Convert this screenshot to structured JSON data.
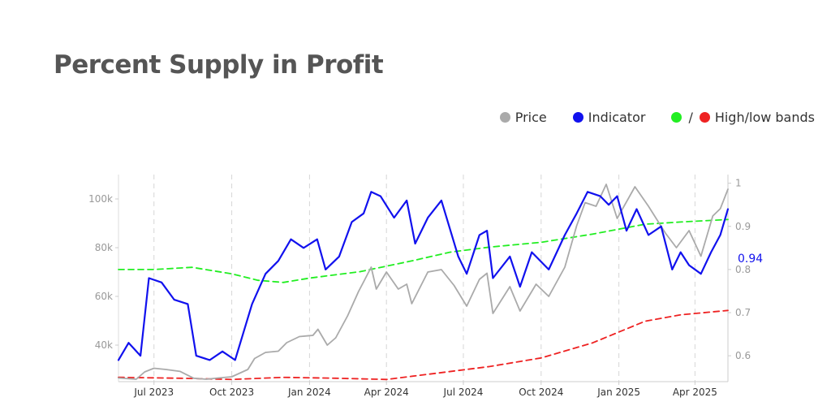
{
  "page": {
    "title": "Percent Supply in Profit"
  },
  "legend": [
    {
      "label": "Price",
      "colors": [
        "#aaaaaa"
      ]
    },
    {
      "label": "Indicator",
      "colors": [
        "#1111ee"
      ]
    },
    {
      "label": "High/low bands",
      "colors": [
        "#22ee22",
        "#ee2222"
      ],
      "separator": "/"
    }
  ],
  "chart_data": {
    "type": "line",
    "title": "Percent Supply in Profit",
    "x_range": [
      "2023-05-20",
      "2025-05-10"
    ],
    "x_ticks": [
      {
        "date": "2023-07-01",
        "label": "Jul 2023"
      },
      {
        "date": "2023-10-01",
        "label": "Oct 2023"
      },
      {
        "date": "2024-01-01",
        "label": "Jan 2024"
      },
      {
        "date": "2024-04-01",
        "label": "Apr 2024"
      },
      {
        "date": "2024-07-01",
        "label": "Jul 2024"
      },
      {
        "date": "2024-10-01",
        "label": "Oct 2024"
      },
      {
        "date": "2025-01-01",
        "label": "Jan 2025"
      },
      {
        "date": "2025-04-01",
        "label": "Apr 2025"
      }
    ],
    "y_left": {
      "range": [
        25000,
        110000
      ],
      "ticks": [
        40000,
        60000,
        80000,
        100000
      ],
      "tick_labels": [
        "40k",
        "60k",
        "80k",
        "100k"
      ]
    },
    "y_right": {
      "range": [
        0.54,
        1.02
      ],
      "ticks": [
        0.6,
        0.7,
        0.8,
        0.9,
        1.0
      ],
      "tick_labels": [
        "0.6",
        "0.7",
        "0.8",
        "0.9",
        "1"
      ]
    },
    "grid": {
      "vertical_dashed": true,
      "horizontal": false
    },
    "last_value_label": "0.94",
    "series": [
      {
        "name": "Price",
        "axis": "left",
        "color": "#aaaaaa",
        "style": "solid",
        "points": [
          [
            "2023-05-20",
            26500
          ],
          [
            "2023-06-10",
            26000
          ],
          [
            "2023-06-20",
            29000
          ],
          [
            "2023-07-01",
            30500
          ],
          [
            "2023-07-15",
            30000
          ],
          [
            "2023-08-01",
            29200
          ],
          [
            "2023-08-17",
            26400
          ],
          [
            "2023-09-01",
            26000
          ],
          [
            "2023-09-15",
            26500
          ],
          [
            "2023-10-01",
            27000
          ],
          [
            "2023-10-20",
            30000
          ],
          [
            "2023-10-28",
            34500
          ],
          [
            "2023-11-10",
            37000
          ],
          [
            "2023-11-25",
            37500
          ],
          [
            "2023-12-05",
            41000
          ],
          [
            "2023-12-20",
            43500
          ],
          [
            "2024-01-05",
            44000
          ],
          [
            "2024-01-11",
            46500
          ],
          [
            "2024-01-22",
            40000
          ],
          [
            "2024-02-01",
            43000
          ],
          [
            "2024-02-15",
            52000
          ],
          [
            "2024-02-28",
            62000
          ],
          [
            "2024-03-05",
            66000
          ],
          [
            "2024-03-14",
            72000
          ],
          [
            "2024-03-20",
            63000
          ],
          [
            "2024-04-01",
            70000
          ],
          [
            "2024-04-15",
            63000
          ],
          [
            "2024-04-25",
            65000
          ],
          [
            "2024-05-01",
            57000
          ],
          [
            "2024-05-20",
            70000
          ],
          [
            "2024-06-05",
            71000
          ],
          [
            "2024-06-20",
            64500
          ],
          [
            "2024-07-05",
            56000
          ],
          [
            "2024-07-20",
            67000
          ],
          [
            "2024-07-29",
            69500
          ],
          [
            "2024-08-05",
            53000
          ],
          [
            "2024-08-25",
            64000
          ],
          [
            "2024-09-06",
            54000
          ],
          [
            "2024-09-25",
            65000
          ],
          [
            "2024-10-10",
            60000
          ],
          [
            "2024-10-29",
            72000
          ],
          [
            "2024-11-12",
            89000
          ],
          [
            "2024-11-22",
            98500
          ],
          [
            "2024-12-05",
            97000
          ],
          [
            "2024-12-17",
            106000
          ],
          [
            "2024-12-30",
            92000
          ],
          [
            "2025-01-20",
            105000
          ],
          [
            "2025-02-05",
            97000
          ],
          [
            "2025-02-25",
            86000
          ],
          [
            "2025-03-10",
            80000
          ],
          [
            "2025-03-25",
            87000
          ],
          [
            "2025-04-08",
            76500
          ],
          [
            "2025-04-22",
            93000
          ],
          [
            "2025-05-01",
            96000
          ],
          [
            "2025-05-10",
            104000
          ]
        ]
      },
      {
        "name": "Indicator",
        "axis": "right",
        "color": "#1111ee",
        "style": "solid",
        "points": [
          [
            "2023-05-20",
            0.59
          ],
          [
            "2023-06-01",
            0.63
          ],
          [
            "2023-06-15",
            0.6
          ],
          [
            "2023-06-25",
            0.78
          ],
          [
            "2023-07-10",
            0.77
          ],
          [
            "2023-07-25",
            0.73
          ],
          [
            "2023-08-10",
            0.72
          ],
          [
            "2023-08-20",
            0.6
          ],
          [
            "2023-09-05",
            0.59
          ],
          [
            "2023-09-20",
            0.61
          ],
          [
            "2023-10-05",
            0.59
          ],
          [
            "2023-10-25",
            0.72
          ],
          [
            "2023-11-10",
            0.79
          ],
          [
            "2023-11-25",
            0.82
          ],
          [
            "2023-12-10",
            0.87
          ],
          [
            "2023-12-25",
            0.85
          ],
          [
            "2024-01-10",
            0.87
          ],
          [
            "2024-01-20",
            0.8
          ],
          [
            "2024-02-05",
            0.83
          ],
          [
            "2024-02-20",
            0.91
          ],
          [
            "2024-03-05",
            0.93
          ],
          [
            "2024-03-14",
            0.98
          ],
          [
            "2024-03-25",
            0.97
          ],
          [
            "2024-04-10",
            0.92
          ],
          [
            "2024-04-25",
            0.96
          ],
          [
            "2024-05-05",
            0.86
          ],
          [
            "2024-05-20",
            0.92
          ],
          [
            "2024-06-05",
            0.96
          ],
          [
            "2024-06-25",
            0.83
          ],
          [
            "2024-07-05",
            0.79
          ],
          [
            "2024-07-20",
            0.88
          ],
          [
            "2024-07-29",
            0.89
          ],
          [
            "2024-08-05",
            0.78
          ],
          [
            "2024-08-25",
            0.83
          ],
          [
            "2024-09-06",
            0.76
          ],
          [
            "2024-09-20",
            0.84
          ],
          [
            "2024-10-10",
            0.8
          ],
          [
            "2024-10-29",
            0.88
          ],
          [
            "2024-11-12",
            0.93
          ],
          [
            "2024-11-25",
            0.98
          ],
          [
            "2024-12-10",
            0.97
          ],
          [
            "2024-12-20",
            0.95
          ],
          [
            "2024-12-30",
            0.97
          ],
          [
            "2025-01-10",
            0.89
          ],
          [
            "2025-01-22",
            0.94
          ],
          [
            "2025-02-05",
            0.88
          ],
          [
            "2025-02-20",
            0.9
          ],
          [
            "2025-03-05",
            0.8
          ],
          [
            "2025-03-15",
            0.84
          ],
          [
            "2025-03-25",
            0.81
          ],
          [
            "2025-04-08",
            0.79
          ],
          [
            "2025-04-20",
            0.84
          ],
          [
            "2025-05-01",
            0.88
          ],
          [
            "2025-05-10",
            0.94
          ]
        ]
      },
      {
        "name": "High band",
        "axis": "right",
        "color": "#22ee22",
        "style": "dashed",
        "points": [
          [
            "2023-05-20",
            0.8
          ],
          [
            "2023-07-01",
            0.8
          ],
          [
            "2023-08-15",
            0.805
          ],
          [
            "2023-10-01",
            0.79
          ],
          [
            "2023-11-01",
            0.775
          ],
          [
            "2023-12-01",
            0.77
          ],
          [
            "2024-01-01",
            0.78
          ],
          [
            "2024-03-01",
            0.795
          ],
          [
            "2024-05-01",
            0.82
          ],
          [
            "2024-06-15",
            0.84
          ],
          [
            "2024-08-01",
            0.852
          ],
          [
            "2024-10-01",
            0.863
          ],
          [
            "2024-12-01",
            0.882
          ],
          [
            "2025-02-01",
            0.905
          ],
          [
            "2025-03-15",
            0.91
          ],
          [
            "2025-05-10",
            0.916
          ]
        ]
      },
      {
        "name": "Low band",
        "axis": "right",
        "color": "#ee2222",
        "style": "dashed",
        "points": [
          [
            "2023-05-20",
            0.55
          ],
          [
            "2023-08-01",
            0.548
          ],
          [
            "2023-10-01",
            0.545
          ],
          [
            "2023-12-01",
            0.55
          ],
          [
            "2024-02-01",
            0.548
          ],
          [
            "2024-04-01",
            0.545
          ],
          [
            "2024-06-01",
            0.56
          ],
          [
            "2024-08-01",
            0.575
          ],
          [
            "2024-10-01",
            0.595
          ],
          [
            "2024-12-01",
            0.63
          ],
          [
            "2025-01-01",
            0.655
          ],
          [
            "2025-02-01",
            0.68
          ],
          [
            "2025-03-15",
            0.695
          ],
          [
            "2025-05-10",
            0.705
          ]
        ]
      }
    ]
  }
}
